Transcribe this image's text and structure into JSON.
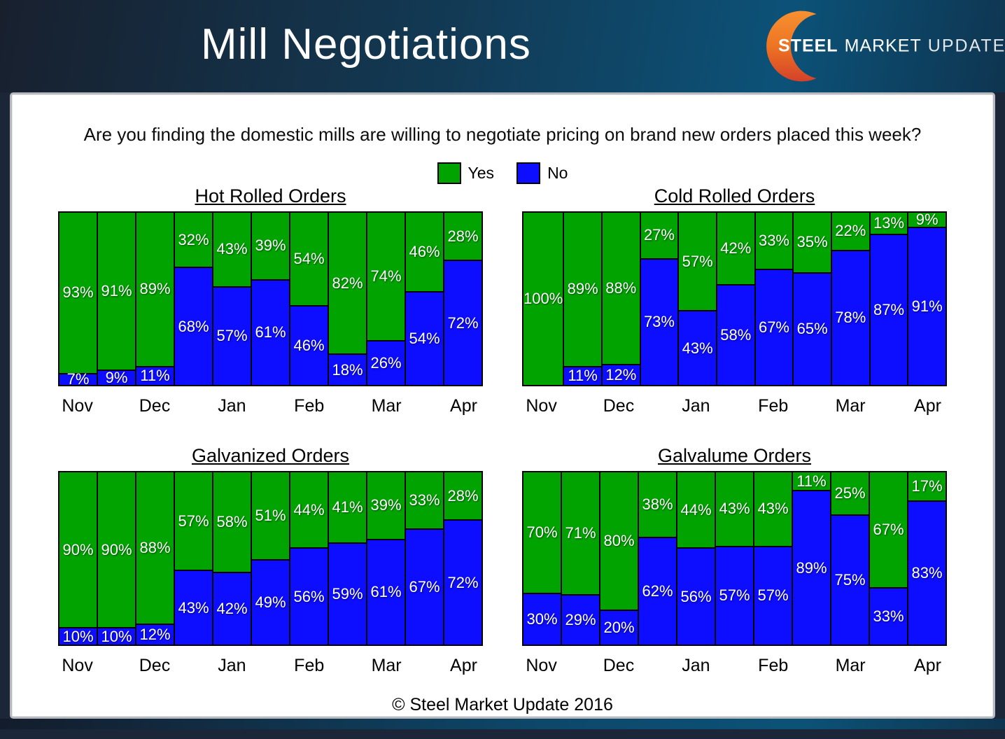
{
  "header": {
    "title": "Mill Negotiations",
    "logo": {
      "steel": "STEEL",
      "market": "MARKET",
      "update": "UPDATE"
    }
  },
  "question": "Are you finding the domestic mills are willing to negotiate pricing on brand new orders placed this week?",
  "legend": {
    "yes_label": "Yes",
    "no_label": "No"
  },
  "colors": {
    "yes": "#00A300",
    "no": "#0D0DFF",
    "header_dark": "#18202E",
    "header_light": "#0C5278",
    "logo_orange": "#F79433",
    "logo_red": "#D13B2A"
  },
  "footer": "© Steel Market Update 2016",
  "chart_data": [
    {
      "type": "bar",
      "stacked": true,
      "title": "Hot Rolled Orders",
      "categories": [
        "Nov",
        "Dec",
        "Jan",
        "Feb",
        "Mar",
        "Apr"
      ],
      "bars_per_month_label": 2,
      "ylim": [
        0,
        100
      ],
      "unit": "%",
      "series": [
        {
          "name": "Yes",
          "values": [
            93,
            91,
            89,
            32,
            43,
            39,
            54,
            82,
            74,
            46,
            28
          ]
        },
        {
          "name": "No",
          "values": [
            7,
            9,
            11,
            68,
            57,
            61,
            46,
            18,
            26,
            54,
            72
          ]
        }
      ]
    },
    {
      "type": "bar",
      "stacked": true,
      "title": "Cold Rolled Orders",
      "categories": [
        "Nov",
        "Dec",
        "Jan",
        "Feb",
        "Mar",
        "Apr"
      ],
      "bars_per_month_label": 2,
      "ylim": [
        0,
        100
      ],
      "unit": "%",
      "series": [
        {
          "name": "Yes",
          "values": [
            100,
            89,
            88,
            27,
            57,
            42,
            33,
            35,
            22,
            13,
            9
          ]
        },
        {
          "name": "No",
          "values": [
            0,
            11,
            12,
            73,
            43,
            58,
            67,
            65,
            78,
            87,
            91
          ]
        }
      ]
    },
    {
      "type": "bar",
      "stacked": true,
      "title": "Galvanized Orders",
      "categories": [
        "Nov",
        "Dec",
        "Jan",
        "Feb",
        "Mar",
        "Apr"
      ],
      "bars_per_month_label": 2,
      "ylim": [
        0,
        100
      ],
      "unit": "%",
      "series": [
        {
          "name": "Yes",
          "values": [
            90,
            90,
            88,
            57,
            58,
            51,
            44,
            41,
            39,
            33,
            28
          ]
        },
        {
          "name": "No",
          "values": [
            10,
            10,
            12,
            43,
            42,
            49,
            56,
            59,
            61,
            67,
            72
          ]
        }
      ]
    },
    {
      "type": "bar",
      "stacked": true,
      "title": "Galvalume Orders",
      "categories": [
        "Nov",
        "Dec",
        "Jan",
        "Feb",
        "Mar",
        "Apr"
      ],
      "bars_per_month_label": 2,
      "ylim": [
        0,
        100
      ],
      "unit": "%",
      "series": [
        {
          "name": "Yes",
          "values": [
            70,
            71,
            80,
            38,
            44,
            43,
            43,
            11,
            25,
            67,
            17
          ]
        },
        {
          "name": "No",
          "values": [
            30,
            29,
            20,
            62,
            56,
            57,
            57,
            89,
            75,
            33,
            83
          ]
        }
      ]
    }
  ]
}
